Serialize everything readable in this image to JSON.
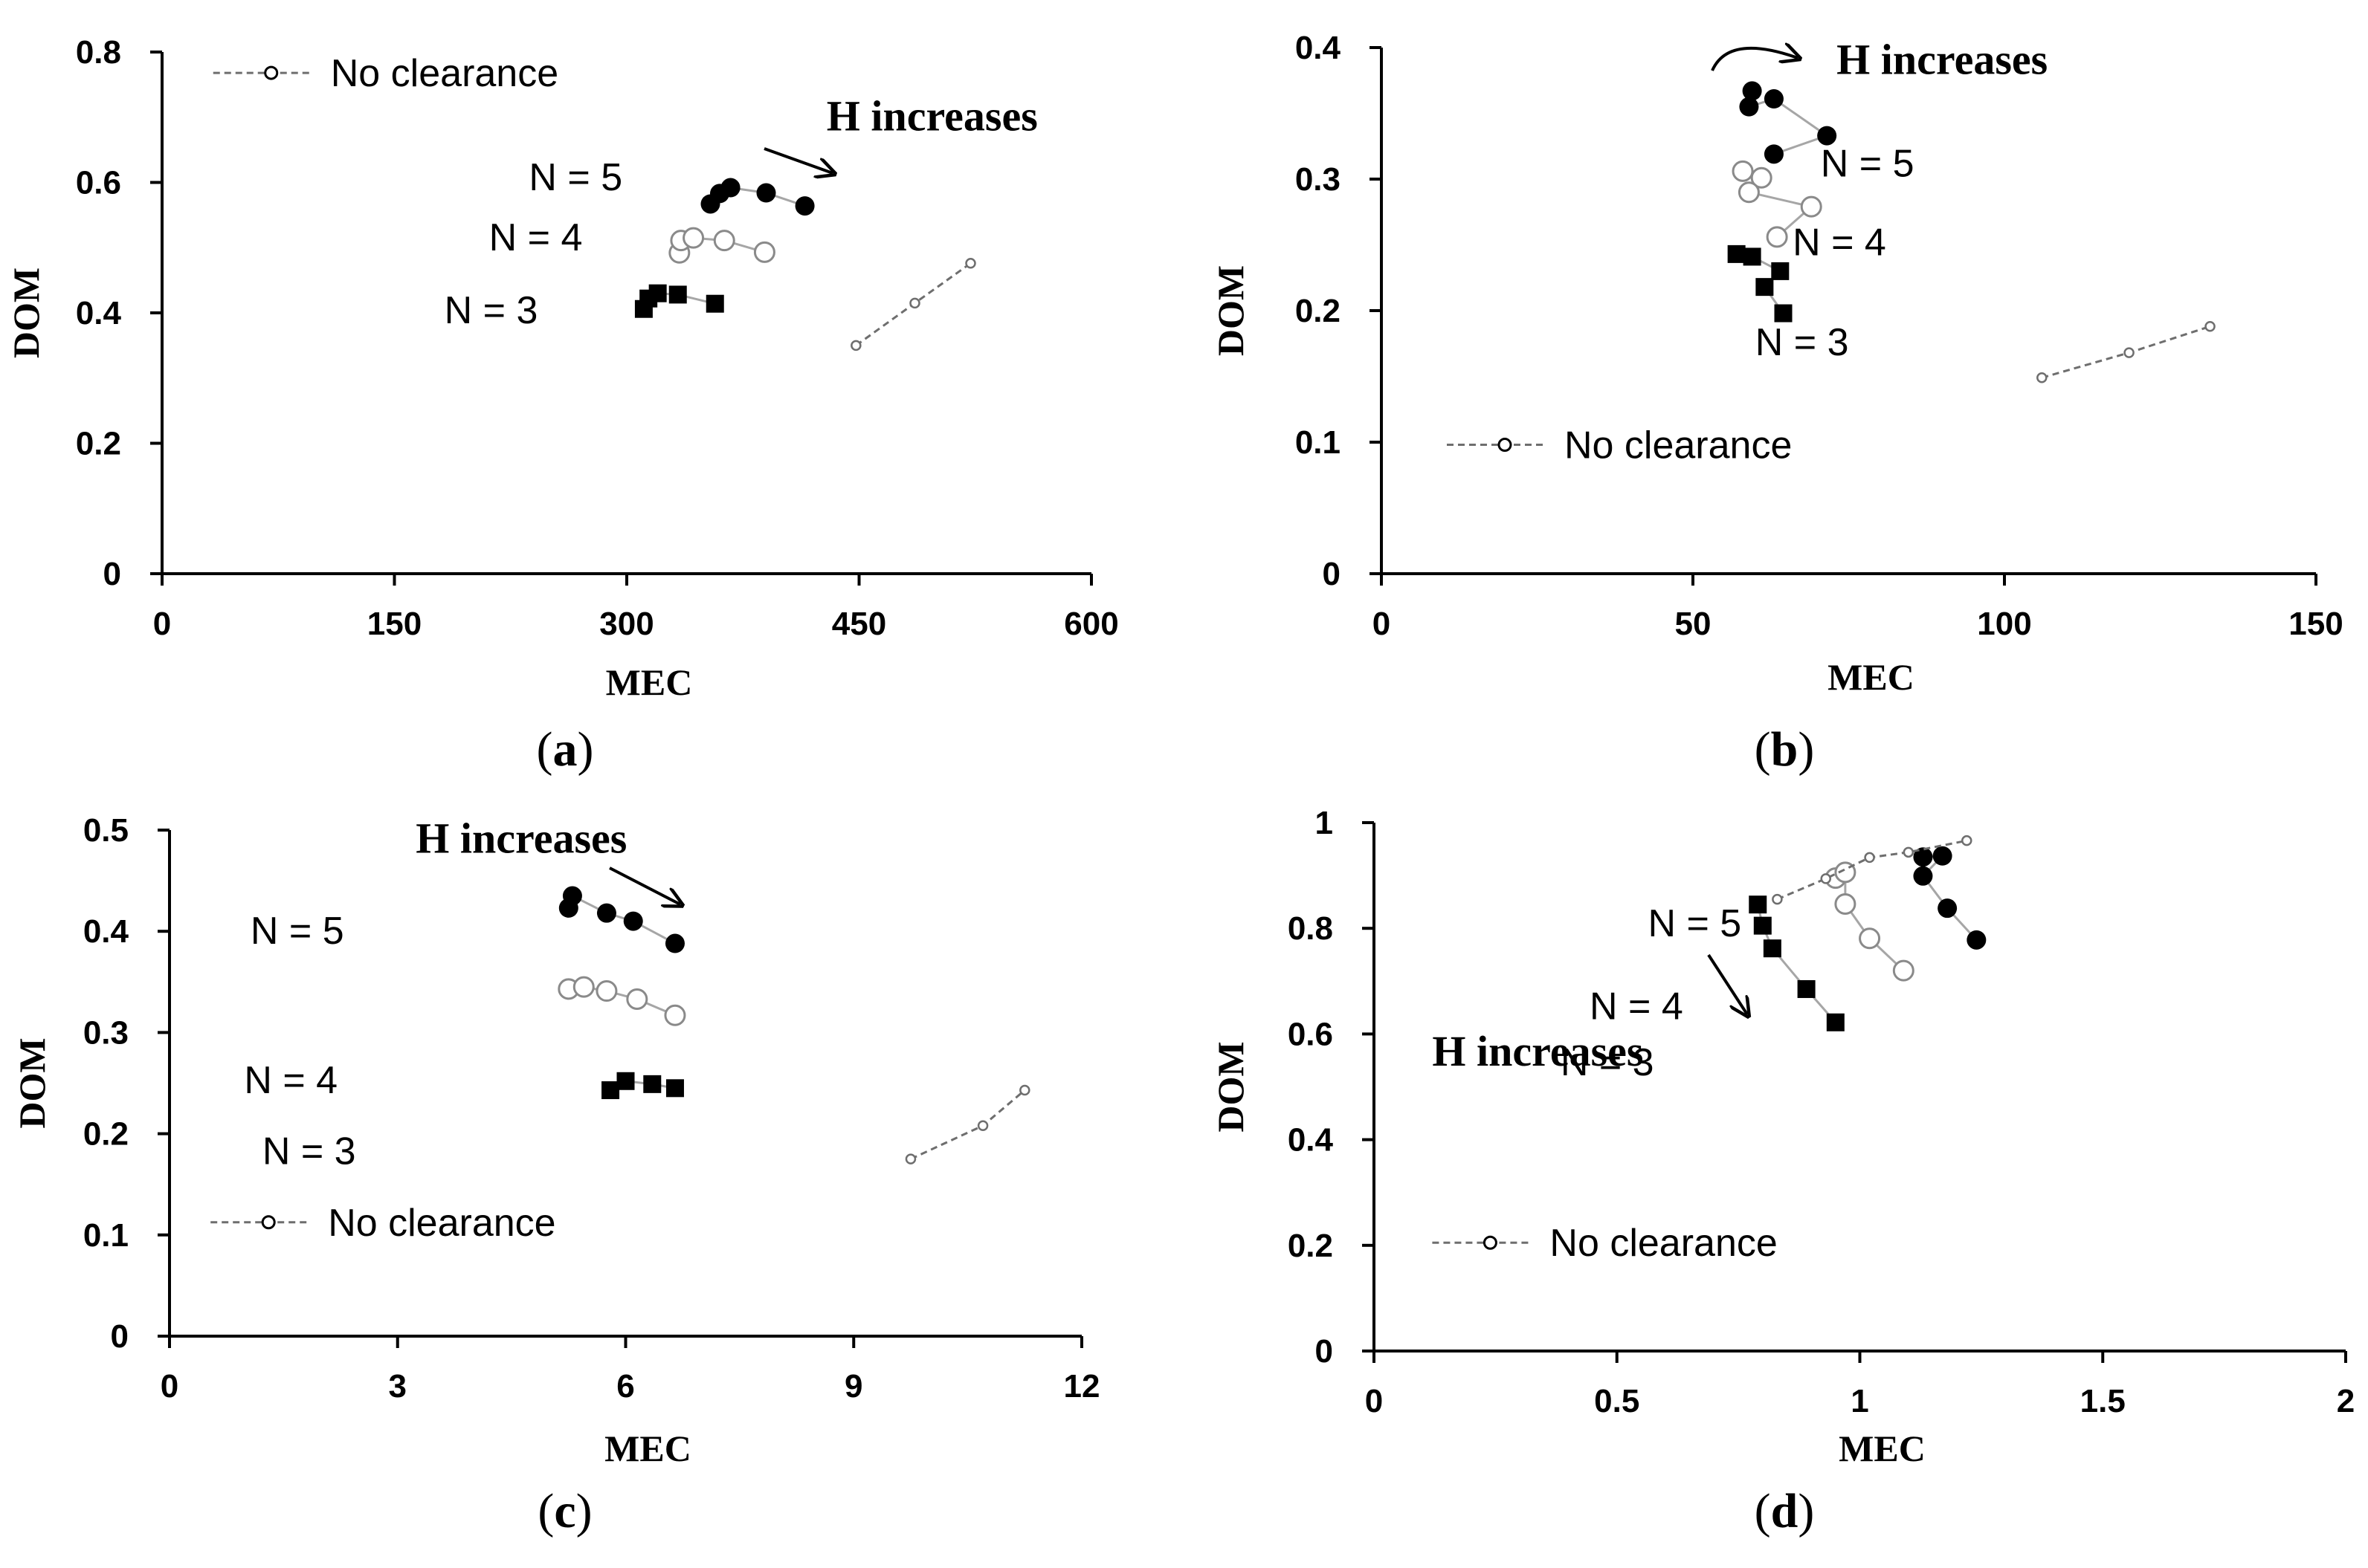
{
  "figure_labels": [
    "a",
    "b",
    "c",
    "d"
  ],
  "chart_data": [
    {
      "id": "a",
      "type": "scatter",
      "panel_label": "a",
      "xlabel": "MEC",
      "ylabel": "DOM",
      "xlim": [
        0,
        600
      ],
      "ylim": [
        0,
        0.8
      ],
      "xticks": [
        0,
        150,
        300,
        450,
        600
      ],
      "yticks": [
        0,
        0.2,
        0.4,
        0.6,
        0.8
      ],
      "xtick_labels": [
        "0",
        "150",
        "300",
        "450",
        "600"
      ],
      "ytick_labels": [
        "0",
        "0.2",
        "0.4",
        "0.6",
        "0.8"
      ],
      "series": [
        {
          "name": "N = 5",
          "marker": "filled-circle",
          "points": [
            [
              354,
              0.567
            ],
            [
              360,
              0.583
            ],
            [
              367,
              0.592
            ],
            [
              390,
              0.584
            ],
            [
              415,
              0.564
            ]
          ]
        },
        {
          "name": "N = 4",
          "marker": "open-circle",
          "points": [
            [
              334,
              0.492
            ],
            [
              335,
              0.511
            ],
            [
              343,
              0.515
            ],
            [
              363,
              0.511
            ],
            [
              389,
              0.493
            ]
          ]
        },
        {
          "name": "N = 3",
          "marker": "filled-square",
          "points": [
            [
              311,
              0.406
            ],
            [
              314,
              0.422
            ],
            [
              320,
              0.43
            ],
            [
              333,
              0.428
            ],
            [
              357,
              0.414
            ]
          ]
        },
        {
          "name": "No clearance",
          "marker": "small-open-circle",
          "dashed": true,
          "points": [
            [
              448,
              0.35
            ],
            [
              486,
              0.415
            ],
            [
              522,
              0.476
            ]
          ]
        }
      ],
      "legend": {
        "text": "No clearance",
        "position": "top-left"
      },
      "annotations": [
        {
          "text": "H increases",
          "arrow": "straight"
        },
        {
          "text": "N = 5"
        },
        {
          "text": "N = 4"
        },
        {
          "text": "N = 3"
        }
      ]
    },
    {
      "id": "b",
      "type": "scatter",
      "panel_label": "b",
      "xlabel": "MEC",
      "ylabel": "DOM",
      "xlim": [
        0,
        150
      ],
      "ylim": [
        0,
        0.4
      ],
      "xticks": [
        0,
        50,
        100,
        150
      ],
      "yticks": [
        0,
        0.1,
        0.2,
        0.3,
        0.4
      ],
      "xtick_labels": [
        "0",
        "50",
        "100",
        "150"
      ],
      "ytick_labels": [
        "0",
        "0.1",
        "0.2",
        "0.3",
        "0.4"
      ],
      "series": [
        {
          "name": "N = 5",
          "marker": "filled-circle",
          "points": [
            [
              59.5,
              0.367
            ],
            [
              59.0,
              0.355
            ],
            [
              63.0,
              0.361
            ],
            [
              71.5,
              0.333
            ],
            [
              63.0,
              0.319
            ]
          ]
        },
        {
          "name": "N = 4",
          "marker": "open-circle",
          "points": [
            [
              58.0,
              0.306
            ],
            [
              61.0,
              0.301
            ],
            [
              59.0,
              0.29
            ],
            [
              69.0,
              0.279
            ],
            [
              63.5,
              0.256
            ]
          ]
        },
        {
          "name": "N = 3",
          "marker": "filled-square",
          "points": [
            [
              57.0,
              0.243
            ],
            [
              59.5,
              0.241
            ],
            [
              64.0,
              0.23
            ],
            [
              61.5,
              0.218
            ],
            [
              64.5,
              0.198
            ]
          ]
        },
        {
          "name": "No clearance",
          "marker": "small-open-circle",
          "dashed": true,
          "points": [
            [
              106,
              0.149
            ],
            [
              120,
              0.168
            ],
            [
              133,
              0.188
            ]
          ]
        }
      ],
      "legend": {
        "text": "No clearance",
        "position": "bottom-left"
      },
      "annotations": [
        {
          "text": "H increases",
          "arrow": "curved"
        },
        {
          "text": "N = 5"
        },
        {
          "text": "N = 4"
        },
        {
          "text": "N = 3"
        }
      ]
    },
    {
      "id": "c",
      "type": "scatter",
      "panel_label": "c",
      "xlabel": "MEC",
      "ylabel": "DOM",
      "xlim": [
        0,
        12
      ],
      "ylim": [
        0,
        0.5
      ],
      "xticks": [
        0,
        3,
        6,
        9,
        12
      ],
      "yticks": [
        0,
        0.1,
        0.2,
        0.3,
        0.4,
        0.5
      ],
      "xtick_labels": [
        "0",
        "3",
        "6",
        "9",
        "12"
      ],
      "ytick_labels": [
        "0",
        "0.1",
        "0.2",
        "0.3",
        "0.4",
        "0.5"
      ],
      "series": [
        {
          "name": "N = 5",
          "marker": "filled-circle",
          "points": [
            [
              5.25,
              0.423
            ],
            [
              5.3,
              0.435
            ],
            [
              5.75,
              0.418
            ],
            [
              6.1,
              0.41
            ],
            [
              6.65,
              0.388
            ]
          ]
        },
        {
          "name": "N = 4",
          "marker": "open-circle",
          "points": [
            [
              5.25,
              0.343
            ],
            [
              5.45,
              0.345
            ],
            [
              5.75,
              0.341
            ],
            [
              6.15,
              0.333
            ],
            [
              6.65,
              0.317
            ]
          ]
        },
        {
          "name": "N = 3",
          "marker": "filled-square",
          "points": [
            [
              5.8,
              0.243
            ],
            [
              6.0,
              0.252
            ],
            [
              6.35,
              0.249
            ],
            [
              6.65,
              0.245
            ]
          ]
        },
        {
          "name": "No clearance",
          "marker": "small-open-circle",
          "dashed": true,
          "points": [
            [
              9.75,
              0.175
            ],
            [
              10.7,
              0.208
            ],
            [
              11.25,
              0.243
            ]
          ]
        }
      ],
      "legend": {
        "text": "No clearance",
        "position": "bottom-left"
      },
      "annotations": [
        {
          "text": "H increases",
          "arrow": "straight"
        },
        {
          "text": "N = 5"
        },
        {
          "text": "N = 4"
        },
        {
          "text": "N = 3"
        }
      ]
    },
    {
      "id": "d",
      "type": "scatter",
      "panel_label": "d",
      "xlabel": "MEC",
      "ylabel": "DOM",
      "xlim": [
        0,
        2
      ],
      "ylim": [
        0,
        1
      ],
      "xticks": [
        0,
        0.5,
        1,
        1.5,
        2
      ],
      "yticks": [
        0,
        0.2,
        0.4,
        0.6,
        0.8,
        1
      ],
      "xtick_labels": [
        "0",
        "0.5",
        "1",
        "1.5",
        "2"
      ],
      "ytick_labels": [
        "0",
        "0.2",
        "0.4",
        "0.6",
        "0.8",
        "1"
      ],
      "series": [
        {
          "name": "N = 5",
          "marker": "filled-circle",
          "points": [
            [
              1.13,
              0.935
            ],
            [
              1.17,
              0.937
            ],
            [
              1.13,
              0.899
            ],
            [
              1.18,
              0.838
            ],
            [
              1.24,
              0.778
            ]
          ]
        },
        {
          "name": "N = 4",
          "marker": "open-circle",
          "points": [
            [
              0.95,
              0.895
            ],
            [
              0.97,
              0.906
            ],
            [
              0.97,
              0.846
            ],
            [
              1.02,
              0.781
            ],
            [
              1.09,
              0.72
            ]
          ]
        },
        {
          "name": "N = 3",
          "marker": "filled-square",
          "points": [
            [
              0.79,
              0.845
            ],
            [
              0.8,
              0.805
            ],
            [
              0.82,
              0.762
            ],
            [
              0.89,
              0.685
            ],
            [
              0.95,
              0.622
            ]
          ]
        },
        {
          "name": "No clearance",
          "marker": "small-open-circle",
          "dashed": true,
          "points": [
            [
              0.83,
              0.855
            ],
            [
              0.93,
              0.894
            ],
            [
              1.02,
              0.934
            ],
            [
              1.1,
              0.944
            ],
            [
              1.22,
              0.966
            ]
          ]
        }
      ],
      "legend": {
        "text": "No clearance",
        "position": "bottom-left"
      },
      "annotations": [
        {
          "text": "H increases",
          "arrow": "straight"
        },
        {
          "text": "N = 5"
        },
        {
          "text": "N = 4"
        },
        {
          "text": "N = 3"
        }
      ]
    }
  ]
}
